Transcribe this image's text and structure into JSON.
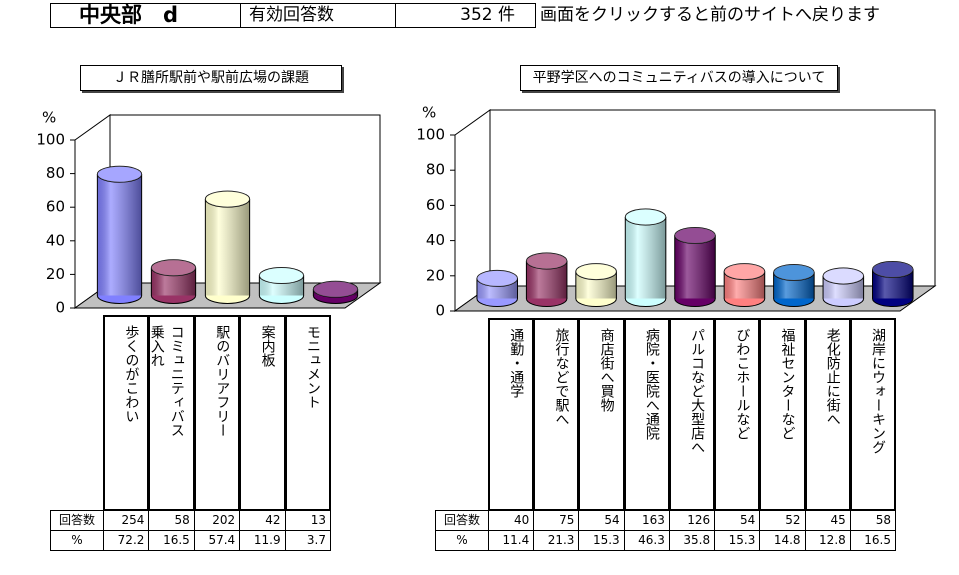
{
  "header": {
    "area": "中央部　d",
    "count_label": "有効回答数",
    "count": "352 件",
    "note": "画面をクリックすると前のサイトへ戻ります"
  },
  "table": {
    "row_labels": [
      "回答数",
      "%"
    ]
  },
  "chart_data": [
    {
      "type": "bar3d",
      "title": "ＪＲ膳所駅前や駅前広場の課題",
      "y_label": "%",
      "categories": [
        "歩くのがこわい",
        "コミュニティバス\n乗入れ",
        "駅のバリアフリー",
        "案内板",
        "モニュメント"
      ],
      "values": [
        72.2,
        16.5,
        57.4,
        11.9,
        3.7
      ],
      "counts": [
        254,
        58,
        202,
        42,
        13
      ],
      "colors": [
        "#8080ff",
        "#993366",
        "#ffffcc",
        "#ccffff",
        "#660066"
      ],
      "ylim": [
        0,
        100
      ],
      "yticks": [
        0,
        20,
        40,
        60,
        80,
        100
      ]
    },
    {
      "type": "bar3d",
      "title": "平野学区へのコミュニティバスの導入について",
      "y_label": "%",
      "categories": [
        "通勤・通学",
        "旅行などで駅へ",
        "商店街へ買物",
        "病院・医院へ通院",
        "パルコなど大型店へ",
        "びわこホールなど",
        "福祉センターなど",
        "老化防止に街へ",
        "湖岸にウォーキング"
      ],
      "values": [
        11.4,
        21.3,
        15.3,
        46.3,
        35.8,
        15.3,
        14.8,
        12.8,
        16.5
      ],
      "counts": [
        40,
        75,
        54,
        163,
        126,
        54,
        52,
        45,
        58
      ],
      "colors": [
        "#9999ff",
        "#993366",
        "#ffffcc",
        "#ccffff",
        "#660066",
        "#ff8080",
        "#0066cc",
        "#ccccff",
        "#000080"
      ],
      "ylim": [
        0,
        100
      ],
      "yticks": [
        0,
        20,
        40,
        60,
        80,
        100
      ]
    }
  ]
}
